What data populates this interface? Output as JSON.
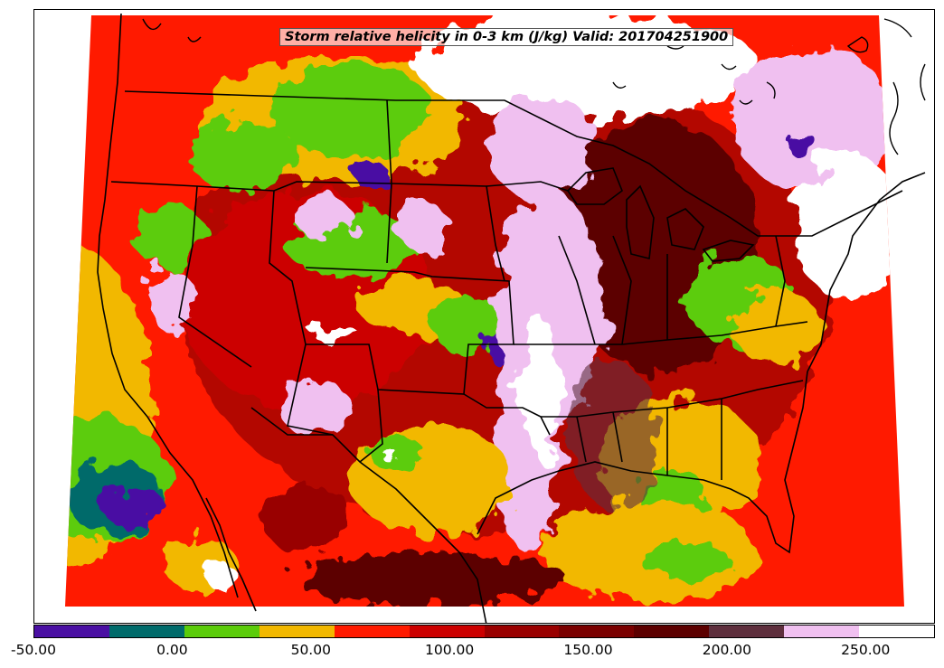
{
  "map": {
    "title": "Storm relative helicity in 0-3 km (J/kg) Valid: 201704251900",
    "region": "Continental United States",
    "colorbar": {
      "min": -50.0,
      "max": 275.0,
      "interval": 25.0,
      "colors": [
        "#4a0fa3",
        "#006b6b",
        "#5bcc0a",
        "#f2b800",
        "#ff1a00",
        "#cc0000",
        "#990000",
        "#7a0000",
        "#5c0000",
        "#5e2f3d",
        "#f0c0f0",
        "#ffffff"
      ],
      "tick_values": [
        -50,
        0,
        50,
        100,
        150,
        200,
        250
      ],
      "tick_labels": [
        "-50.00",
        "0.00",
        "50.00",
        "100.00",
        "150.00",
        "200.00",
        "250.00"
      ]
    }
  }
}
